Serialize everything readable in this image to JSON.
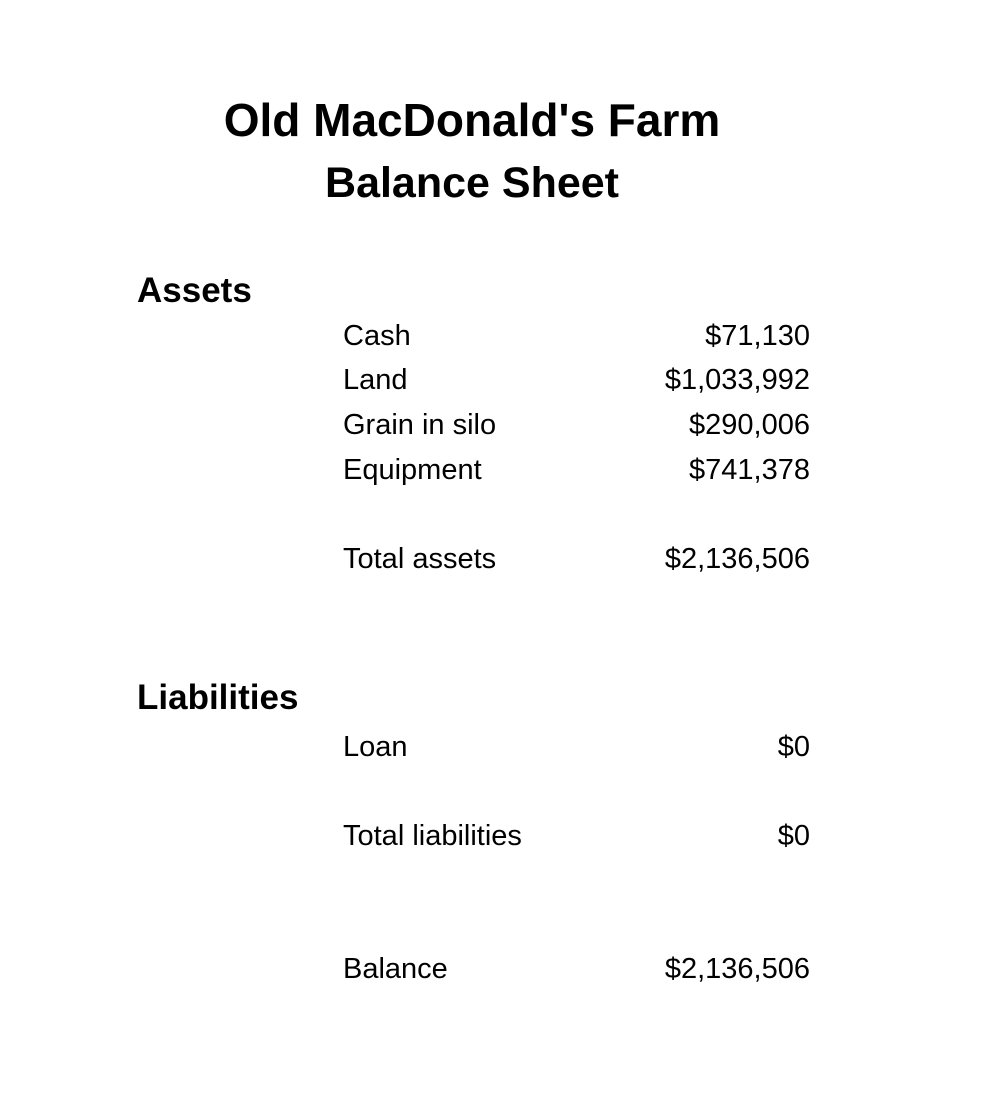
{
  "document": {
    "title": "Old MacDonald's Farm",
    "subtitle": "Balance Sheet"
  },
  "assets": {
    "heading": "Assets",
    "items": [
      {
        "label": "Cash",
        "value": "$71,130"
      },
      {
        "label": "Land",
        "value": "$1,033,992"
      },
      {
        "label": "Grain in silo",
        "value": "$290,006"
      },
      {
        "label": "Equipment",
        "value": "$741,378"
      }
    ],
    "total": {
      "label": "Total assets",
      "value": "$2,136,506"
    }
  },
  "liabilities": {
    "heading": "Liabilities",
    "items": [
      {
        "label": "Loan",
        "value": "$0"
      }
    ],
    "total": {
      "label": "Total liabilities",
      "value": "$0"
    }
  },
  "balance": {
    "label": "Balance",
    "value": "$2,136,506"
  }
}
